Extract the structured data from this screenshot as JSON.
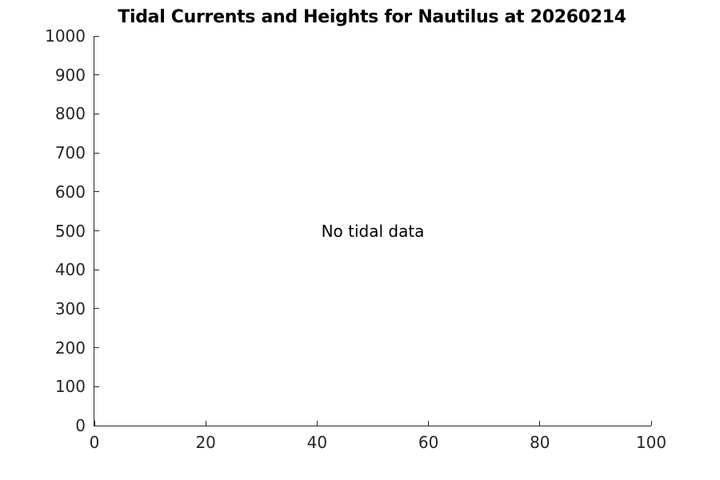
{
  "chart_data": {
    "type": "line",
    "title": "Tidal Currents and Heights for Nautilus at 20260214",
    "xlabel": "",
    "ylabel": "",
    "xlim": [
      0,
      100
    ],
    "ylim": [
      0,
      1000
    ],
    "x_ticks": [
      0,
      20,
      40,
      60,
      80,
      100
    ],
    "y_ticks": [
      0,
      100,
      200,
      300,
      400,
      500,
      600,
      700,
      800,
      900,
      1000
    ],
    "grid": false,
    "legend": false,
    "series": [],
    "annotation": {
      "text": "No tidal data",
      "x": 50,
      "y": 500
    },
    "axis_color": "#262626",
    "title_color": "#000000",
    "background_color": "#ffffff",
    "tick_direction": "in",
    "spines": [
      "left",
      "bottom"
    ]
  }
}
